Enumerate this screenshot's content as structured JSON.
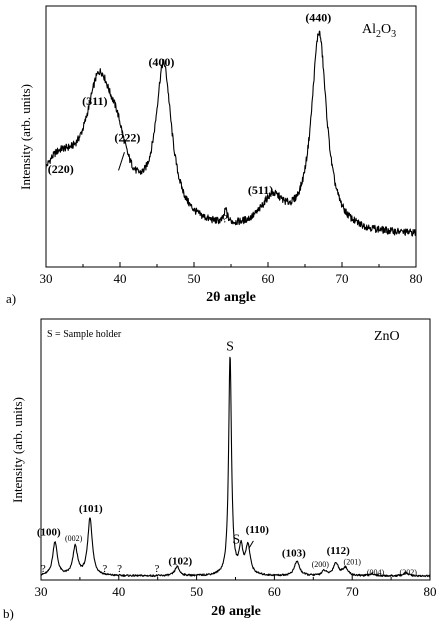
{
  "chart_data": [
    {
      "type": "line",
      "panel_label": "a)",
      "corner_label": {
        "base": "Al",
        "sub1": "2",
        "mid": "O",
        "sub2": "3"
      },
      "xlabel": "2θ angle",
      "ylabel": "Intensity (arb. units)",
      "xlim": [
        30,
        80
      ],
      "ylim": [
        0,
        100
      ],
      "xticks": [
        30,
        40,
        50,
        60,
        70,
        80
      ],
      "grid": false,
      "background": 12,
      "peaks": [
        {
          "center": 31.5,
          "height": 20,
          "width": 3.5
        },
        {
          "center": 37.2,
          "height": 45,
          "width": 2.2
        },
        {
          "center": 39.6,
          "height": 16,
          "width": 1.6
        },
        {
          "center": 45.9,
          "height": 58,
          "width": 1.3
        },
        {
          "center": 54.3,
          "height": 5,
          "width": 0.25
        },
        {
          "center": 60.6,
          "height": 12,
          "width": 2.0
        },
        {
          "center": 66.9,
          "height": 76,
          "width": 1.25
        }
      ],
      "annotations": [
        {
          "text": "(220)",
          "x": 32.0,
          "y": 36
        },
        {
          "text": "(311)",
          "x": 36.6,
          "y": 62
        },
        {
          "text": "(222)",
          "x": 41.0,
          "y": 48
        },
        {
          "text": "(400)",
          "x": 45.6,
          "y": 77
        },
        {
          "text": "?",
          "x": 54.2,
          "y": 17
        },
        {
          "text": "(511)",
          "x": 59.0,
          "y": 28
        },
        {
          "text": "(440)",
          "x": 66.8,
          "y": 94
        }
      ]
    },
    {
      "type": "line",
      "panel_label": "b)",
      "corner_label": {
        "base": "ZnO"
      },
      "note": "S = Sample holder",
      "xlabel": "2θ angle",
      "ylabel": "Intensity (arb. units)",
      "xlim": [
        30,
        80
      ],
      "ylim": [
        0,
        100
      ],
      "xticks": [
        30,
        40,
        50,
        60,
        70,
        80
      ],
      "grid": false,
      "background": 1.5,
      "peaks": [
        {
          "center": 31.8,
          "height": 13,
          "width": 0.35
        },
        {
          "center": 34.4,
          "height": 11,
          "width": 0.35
        },
        {
          "center": 36.3,
          "height": 22,
          "width": 0.35
        },
        {
          "center": 47.5,
          "height": 3.5,
          "width": 0.35
        },
        {
          "center": 54.3,
          "height": 84,
          "width": 0.22
        },
        {
          "center": 55.7,
          "height": 10,
          "width": 0.3
        },
        {
          "center": 56.6,
          "height": 11,
          "width": 0.35
        },
        {
          "center": 62.9,
          "height": 5.5,
          "width": 0.4
        },
        {
          "center": 66.4,
          "height": 1.8,
          "width": 0.35
        },
        {
          "center": 67.9,
          "height": 4.8,
          "width": 0.4
        },
        {
          "center": 69.1,
          "height": 3,
          "width": 0.4
        },
        {
          "center": 72.6,
          "height": 0.8,
          "width": 0.4
        },
        {
          "center": 76.9,
          "height": 1.2,
          "width": 0.4
        }
      ],
      "annotations": [
        {
          "text": "(100)",
          "x": 31.0,
          "y": 17,
          "size": "large"
        },
        {
          "text": "(002)",
          "x": 34.2,
          "y": 15,
          "size": "small"
        },
        {
          "text": "(101)",
          "x": 36.4,
          "y": 26,
          "size": "large"
        },
        {
          "text": "?",
          "x": 30.3,
          "y": 3,
          "size": "large"
        },
        {
          "text": "?",
          "x": 38.2,
          "y": 3,
          "size": "large"
        },
        {
          "text": "?",
          "x": 40.1,
          "y": 3,
          "size": "large"
        },
        {
          "text": "?",
          "x": 44.9,
          "y": 3,
          "size": "large"
        },
        {
          "text": "(102)",
          "x": 47.9,
          "y": 6,
          "size": "large"
        },
        {
          "text": "S",
          "x": 54.3,
          "y": 88,
          "size": "xlarge"
        },
        {
          "text": "S",
          "x": 55.1,
          "y": 14,
          "size": "xlarge"
        },
        {
          "text": "(110)",
          "x": 57.8,
          "y": 18,
          "size": "large"
        },
        {
          "text": "(103)",
          "x": 62.5,
          "y": 9,
          "size": "large"
        },
        {
          "text": "(200)",
          "x": 65.9,
          "y": 5,
          "size": "small"
        },
        {
          "text": "(112)",
          "x": 68.2,
          "y": 10,
          "size": "large"
        },
        {
          "text": "(201)",
          "x": 70.0,
          "y": 6,
          "size": "small"
        },
        {
          "text": "(004)",
          "x": 73.0,
          "y": 2,
          "size": "small"
        },
        {
          "text": "(202)",
          "x": 77.2,
          "y": 2,
          "size": "small"
        }
      ]
    }
  ]
}
